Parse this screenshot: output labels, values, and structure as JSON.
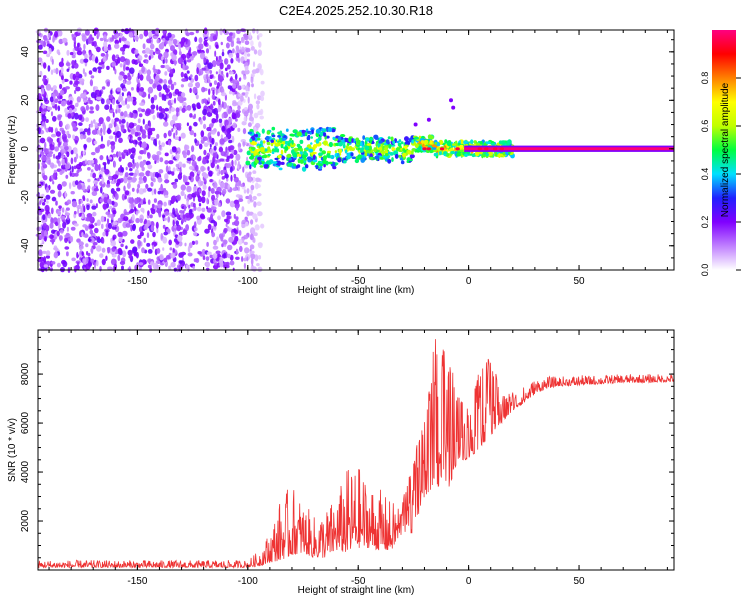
{
  "title": "C2E4.2025.252.10.30.R18",
  "chart_data": [
    {
      "type": "heatmap",
      "title": "C2E4.2025.252.10.30.R18",
      "xlabel": "Height of straight line (km)",
      "ylabel": "Frequency (Hz)",
      "xlim": [
        -195,
        93
      ],
      "ylim": [
        -50,
        49
      ],
      "x_ticks": [
        -150,
        -100,
        -50,
        0,
        50
      ],
      "y_ticks": [
        -40,
        -20,
        0,
        20,
        40
      ],
      "colorbar": {
        "label": "Normalized spectral amplitude",
        "range": [
          0,
          1
        ],
        "ticks": [
          0.0,
          0.2,
          0.4,
          0.6,
          0.8
        ],
        "colors": [
          "#ffffff",
          "#c080ff",
          "#8000ff",
          "#2020ff",
          "#00e0ff",
          "#00ff40",
          "#c0ff00",
          "#ffff00",
          "#ff8000",
          "#ff0000",
          "#ff0080"
        ]
      },
      "regions": [
        {
          "name": "noise",
          "x": [
            -195,
            -90
          ],
          "y": [
            -50,
            49
          ],
          "description_level": 0.15
        },
        {
          "name": "onset",
          "x": [
            -100,
            -60
          ],
          "y_center": 0,
          "y_halfwidth": 8,
          "level": 0.35
        },
        {
          "name": "signal",
          "x": [
            -60,
            20
          ],
          "y_center": 0,
          "y_halfwidth": 4,
          "level": 0.55
        },
        {
          "name": "carrier",
          "x": [
            0,
            93
          ],
          "y_center": 0,
          "level": 0.98
        }
      ],
      "ticks_label_x": [
        "-150",
        "-100",
        "-50",
        "0",
        "50"
      ],
      "ticks_label_y": [
        "-40",
        "-20",
        "0",
        "20",
        "40"
      ],
      "colorbar_tick_labels": [
        "0.0",
        "0.2",
        "0.4",
        "0.6",
        "0.8"
      ]
    },
    {
      "type": "line",
      "xlabel": "Height of straight line (km)",
      "ylabel": "SNR (10 * v/v)",
      "xlim": [
        -195,
        93
      ],
      "ylim": [
        0,
        9800
      ],
      "x_ticks": [
        -150,
        -100,
        -50,
        0,
        50
      ],
      "y_ticks": [
        2000,
        4000,
        6000,
        8000
      ],
      "ticks_label_x": [
        "-150",
        "-100",
        "-50",
        "0",
        "50"
      ],
      "ticks_label_y": [
        "2000",
        "4000",
        "6000",
        "8000"
      ],
      "series": [
        {
          "name": "SNR",
          "color": "#ee3333",
          "envelope": {
            "x": [
              -195,
              -110,
              -100,
              -95,
              -90,
              -85,
              -80,
              -75,
              -70,
              -65,
              -60,
              -55,
              -50,
              -45,
              -40,
              -35,
              -30,
              -25,
              -20,
              -15,
              -10,
              -5,
              0,
              5,
              10,
              15,
              20,
              25,
              30,
              35,
              40,
              50,
              60,
              70,
              80,
              93
            ],
            "low": [
              100,
              100,
              100,
              150,
              300,
              400,
              600,
              700,
              500,
              500,
              800,
              700,
              900,
              900,
              800,
              800,
              1500,
              1500,
              3000,
              3500,
              3000,
              4500,
              4500,
              5000,
              5500,
              6000,
              6500,
              6800,
              7200,
              7400,
              7500,
              7550,
              7600,
              7650,
              7650,
              7700
            ],
            "high": [
              400,
              400,
              400,
              800,
              1600,
              3000,
              3500,
              2800,
              2200,
              2500,
              3000,
              4200,
              4300,
              3600,
              3300,
              2800,
              2800,
              4800,
              6000,
              9700,
              8800,
              7500,
              6500,
              8200,
              8800,
              7200,
              7300,
              7500,
              7800,
              7900,
              7900,
              7950,
              7950,
              8000,
              8000,
              8000
            ]
          }
        }
      ]
    }
  ]
}
